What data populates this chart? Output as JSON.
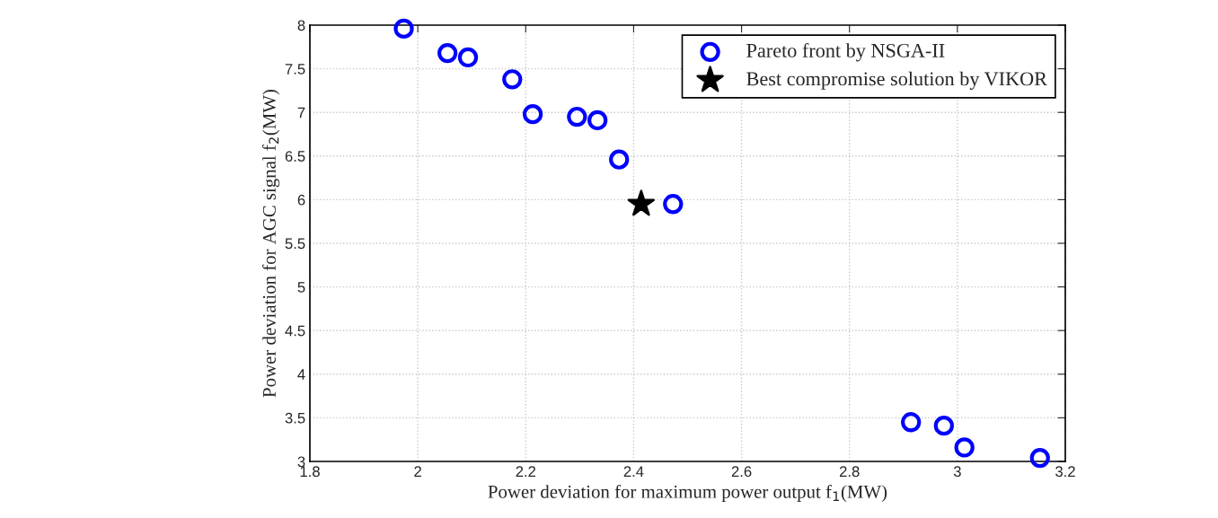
{
  "chart_data": {
    "type": "scatter",
    "xlabel": "Power deviation for maximum power output f$_{1}$(MW)",
    "ylabel": "Power deviation for AGC signal f$_{2}$(MW)",
    "series": [
      {
        "name": "Pareto front by NSGA-II",
        "color": "#0000ff",
        "marker": "circle",
        "x": [
          1.974,
          2.055,
          2.093,
          2.175,
          2.213,
          2.295,
          2.333,
          2.373,
          2.473,
          2.914,
          2.975,
          3.013,
          3.153
        ],
        "values": [
          7.96,
          7.68,
          7.63,
          7.38,
          6.98,
          6.95,
          6.91,
          6.46,
          5.95,
          3.45,
          3.41,
          3.16,
          3.04
        ]
      },
      {
        "name": "Best compromise solution by VIKOR",
        "color": "#000000",
        "marker": "star",
        "x": [
          2.414
        ],
        "values": [
          5.95
        ]
      }
    ],
    "xlim": [
      1.8,
      3.2
    ],
    "xticks": [
      1.8,
      2,
      2.2,
      2.4,
      2.6,
      2.8,
      3,
      3.2
    ],
    "ylim": [
      3,
      8
    ],
    "yticks": [
      3,
      3.5,
      4,
      4.5,
      5,
      5.5,
      6,
      6.5,
      7,
      7.5,
      8
    ],
    "grid": true,
    "legend": "top right"
  }
}
